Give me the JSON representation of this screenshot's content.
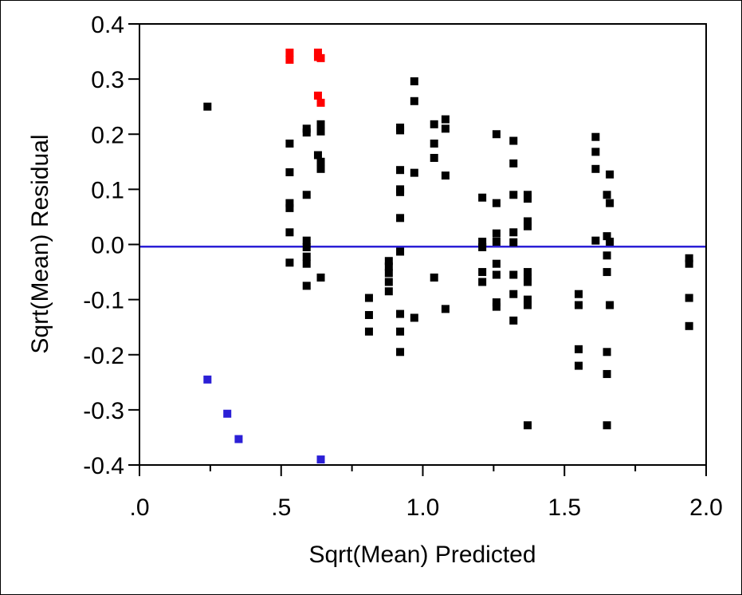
{
  "chart_data": {
    "type": "scatter",
    "title": "",
    "xlabel": "Sqrt(Mean) Predicted",
    "ylabel": "Sqrt(Mean) Residual",
    "xlim": [
      0.0,
      2.0
    ],
    "ylim": [
      -0.4,
      0.4
    ],
    "x_ticks": [
      0.0,
      0.5,
      1.0,
      1.5,
      2.0
    ],
    "x_tick_labels": [
      ".0",
      ".5",
      "1.0",
      "1.5",
      "2.0"
    ],
    "y_ticks": [
      0.4,
      0.3,
      0.2,
      0.1,
      0.0,
      -0.1,
      -0.2,
      -0.3,
      -0.4
    ],
    "y_tick_labels": [
      "0.4",
      "0.3",
      "0.2",
      "0.1",
      "0.0",
      "-0.1",
      "-0.2",
      "-0.3",
      "-0.4"
    ],
    "reference_line": {
      "y": -0.004,
      "color": "#2b1fd6"
    },
    "grid": false,
    "series": [
      {
        "color": "#000000",
        "points": [
          [
            0.24,
            0.25
          ],
          [
            0.53,
            0.183
          ],
          [
            0.53,
            0.131
          ],
          [
            0.53,
            0.075
          ],
          [
            0.53,
            0.066
          ],
          [
            0.53,
            0.022
          ],
          [
            0.53,
            -0.033
          ],
          [
            0.59,
            0.21
          ],
          [
            0.59,
            0.203
          ],
          [
            0.59,
            0.09
          ],
          [
            0.59,
            0.007
          ],
          [
            0.59,
            -0.005
          ],
          [
            0.59,
            -0.022
          ],
          [
            0.59,
            -0.035
          ],
          [
            0.59,
            -0.075
          ],
          [
            0.63,
            0.162
          ],
          [
            0.64,
            0.218
          ],
          [
            0.64,
            0.205
          ],
          [
            0.64,
            0.15
          ],
          [
            0.64,
            0.137
          ],
          [
            0.64,
            -0.06
          ],
          [
            0.81,
            -0.097
          ],
          [
            0.81,
            -0.128
          ],
          [
            0.81,
            -0.158
          ],
          [
            0.88,
            -0.03
          ],
          [
            0.88,
            -0.04
          ],
          [
            0.88,
            -0.052
          ],
          [
            0.88,
            -0.068
          ],
          [
            0.88,
            -0.085
          ],
          [
            0.92,
            0.212
          ],
          [
            0.92,
            0.207
          ],
          [
            0.92,
            0.135
          ],
          [
            0.92,
            0.1
          ],
          [
            0.92,
            0.095
          ],
          [
            0.92,
            0.048
          ],
          [
            0.92,
            -0.013
          ],
          [
            0.92,
            -0.126
          ],
          [
            0.92,
            -0.158
          ],
          [
            0.92,
            -0.195
          ],
          [
            0.97,
            0.296
          ],
          [
            0.97,
            0.26
          ],
          [
            0.97,
            0.13
          ],
          [
            0.97,
            -0.133
          ],
          [
            1.04,
            0.218
          ],
          [
            1.04,
            0.183
          ],
          [
            1.04,
            0.157
          ],
          [
            1.04,
            -0.06
          ],
          [
            1.08,
            0.227
          ],
          [
            1.08,
            0.21
          ],
          [
            1.08,
            0.125
          ],
          [
            1.08,
            -0.117
          ],
          [
            1.21,
            0.085
          ],
          [
            1.21,
            0.005
          ],
          [
            1.21,
            -0.005
          ],
          [
            1.21,
            -0.05
          ],
          [
            1.21,
            -0.068
          ],
          [
            1.26,
            0.2
          ],
          [
            1.26,
            0.075
          ],
          [
            1.26,
            0.02
          ],
          [
            1.26,
            0.005
          ],
          [
            1.26,
            -0.035
          ],
          [
            1.26,
            -0.055
          ],
          [
            1.26,
            -0.105
          ],
          [
            1.26,
            -0.113
          ],
          [
            1.32,
            0.188
          ],
          [
            1.32,
            0.147
          ],
          [
            1.32,
            0.09
          ],
          [
            1.32,
            0.022
          ],
          [
            1.32,
            0.004
          ],
          [
            1.32,
            -0.055
          ],
          [
            1.32,
            -0.09
          ],
          [
            1.32,
            -0.138
          ],
          [
            1.37,
            0.09
          ],
          [
            1.37,
            0.083
          ],
          [
            1.37,
            0.042
          ],
          [
            1.37,
            0.033
          ],
          [
            1.37,
            -0.05
          ],
          [
            1.37,
            -0.06
          ],
          [
            1.37,
            -0.068
          ],
          [
            1.37,
            -0.1
          ],
          [
            1.37,
            -0.11
          ],
          [
            1.37,
            -0.328
          ],
          [
            1.55,
            -0.09
          ],
          [
            1.55,
            -0.11
          ],
          [
            1.55,
            -0.19
          ],
          [
            1.55,
            -0.22
          ],
          [
            1.61,
            0.195
          ],
          [
            1.61,
            0.168
          ],
          [
            1.61,
            0.137
          ],
          [
            1.61,
            0.007
          ],
          [
            1.65,
            0.09
          ],
          [
            1.65,
            0.015
          ],
          [
            1.65,
            -0.02
          ],
          [
            1.65,
            -0.05
          ],
          [
            1.65,
            -0.195
          ],
          [
            1.65,
            -0.235
          ],
          [
            1.65,
            -0.328
          ],
          [
            1.66,
            0.127
          ],
          [
            1.66,
            0.075
          ],
          [
            1.66,
            0.005
          ],
          [
            1.66,
            -0.11
          ],
          [
            1.94,
            -0.025
          ],
          [
            1.94,
            -0.035
          ],
          [
            1.94,
            -0.097
          ],
          [
            1.94,
            -0.148
          ]
        ]
      },
      {
        "color": "#ff0000",
        "points": [
          [
            0.53,
            0.348
          ],
          [
            0.53,
            0.335
          ],
          [
            0.63,
            0.348
          ],
          [
            0.63,
            0.34
          ],
          [
            0.64,
            0.338
          ],
          [
            0.63,
            0.27
          ],
          [
            0.64,
            0.257
          ]
        ]
      },
      {
        "color": "#2b1fd6",
        "points": [
          [
            0.24,
            -0.245
          ],
          [
            0.31,
            -0.307
          ],
          [
            0.35,
            -0.353
          ],
          [
            0.64,
            -0.39
          ]
        ]
      }
    ]
  }
}
